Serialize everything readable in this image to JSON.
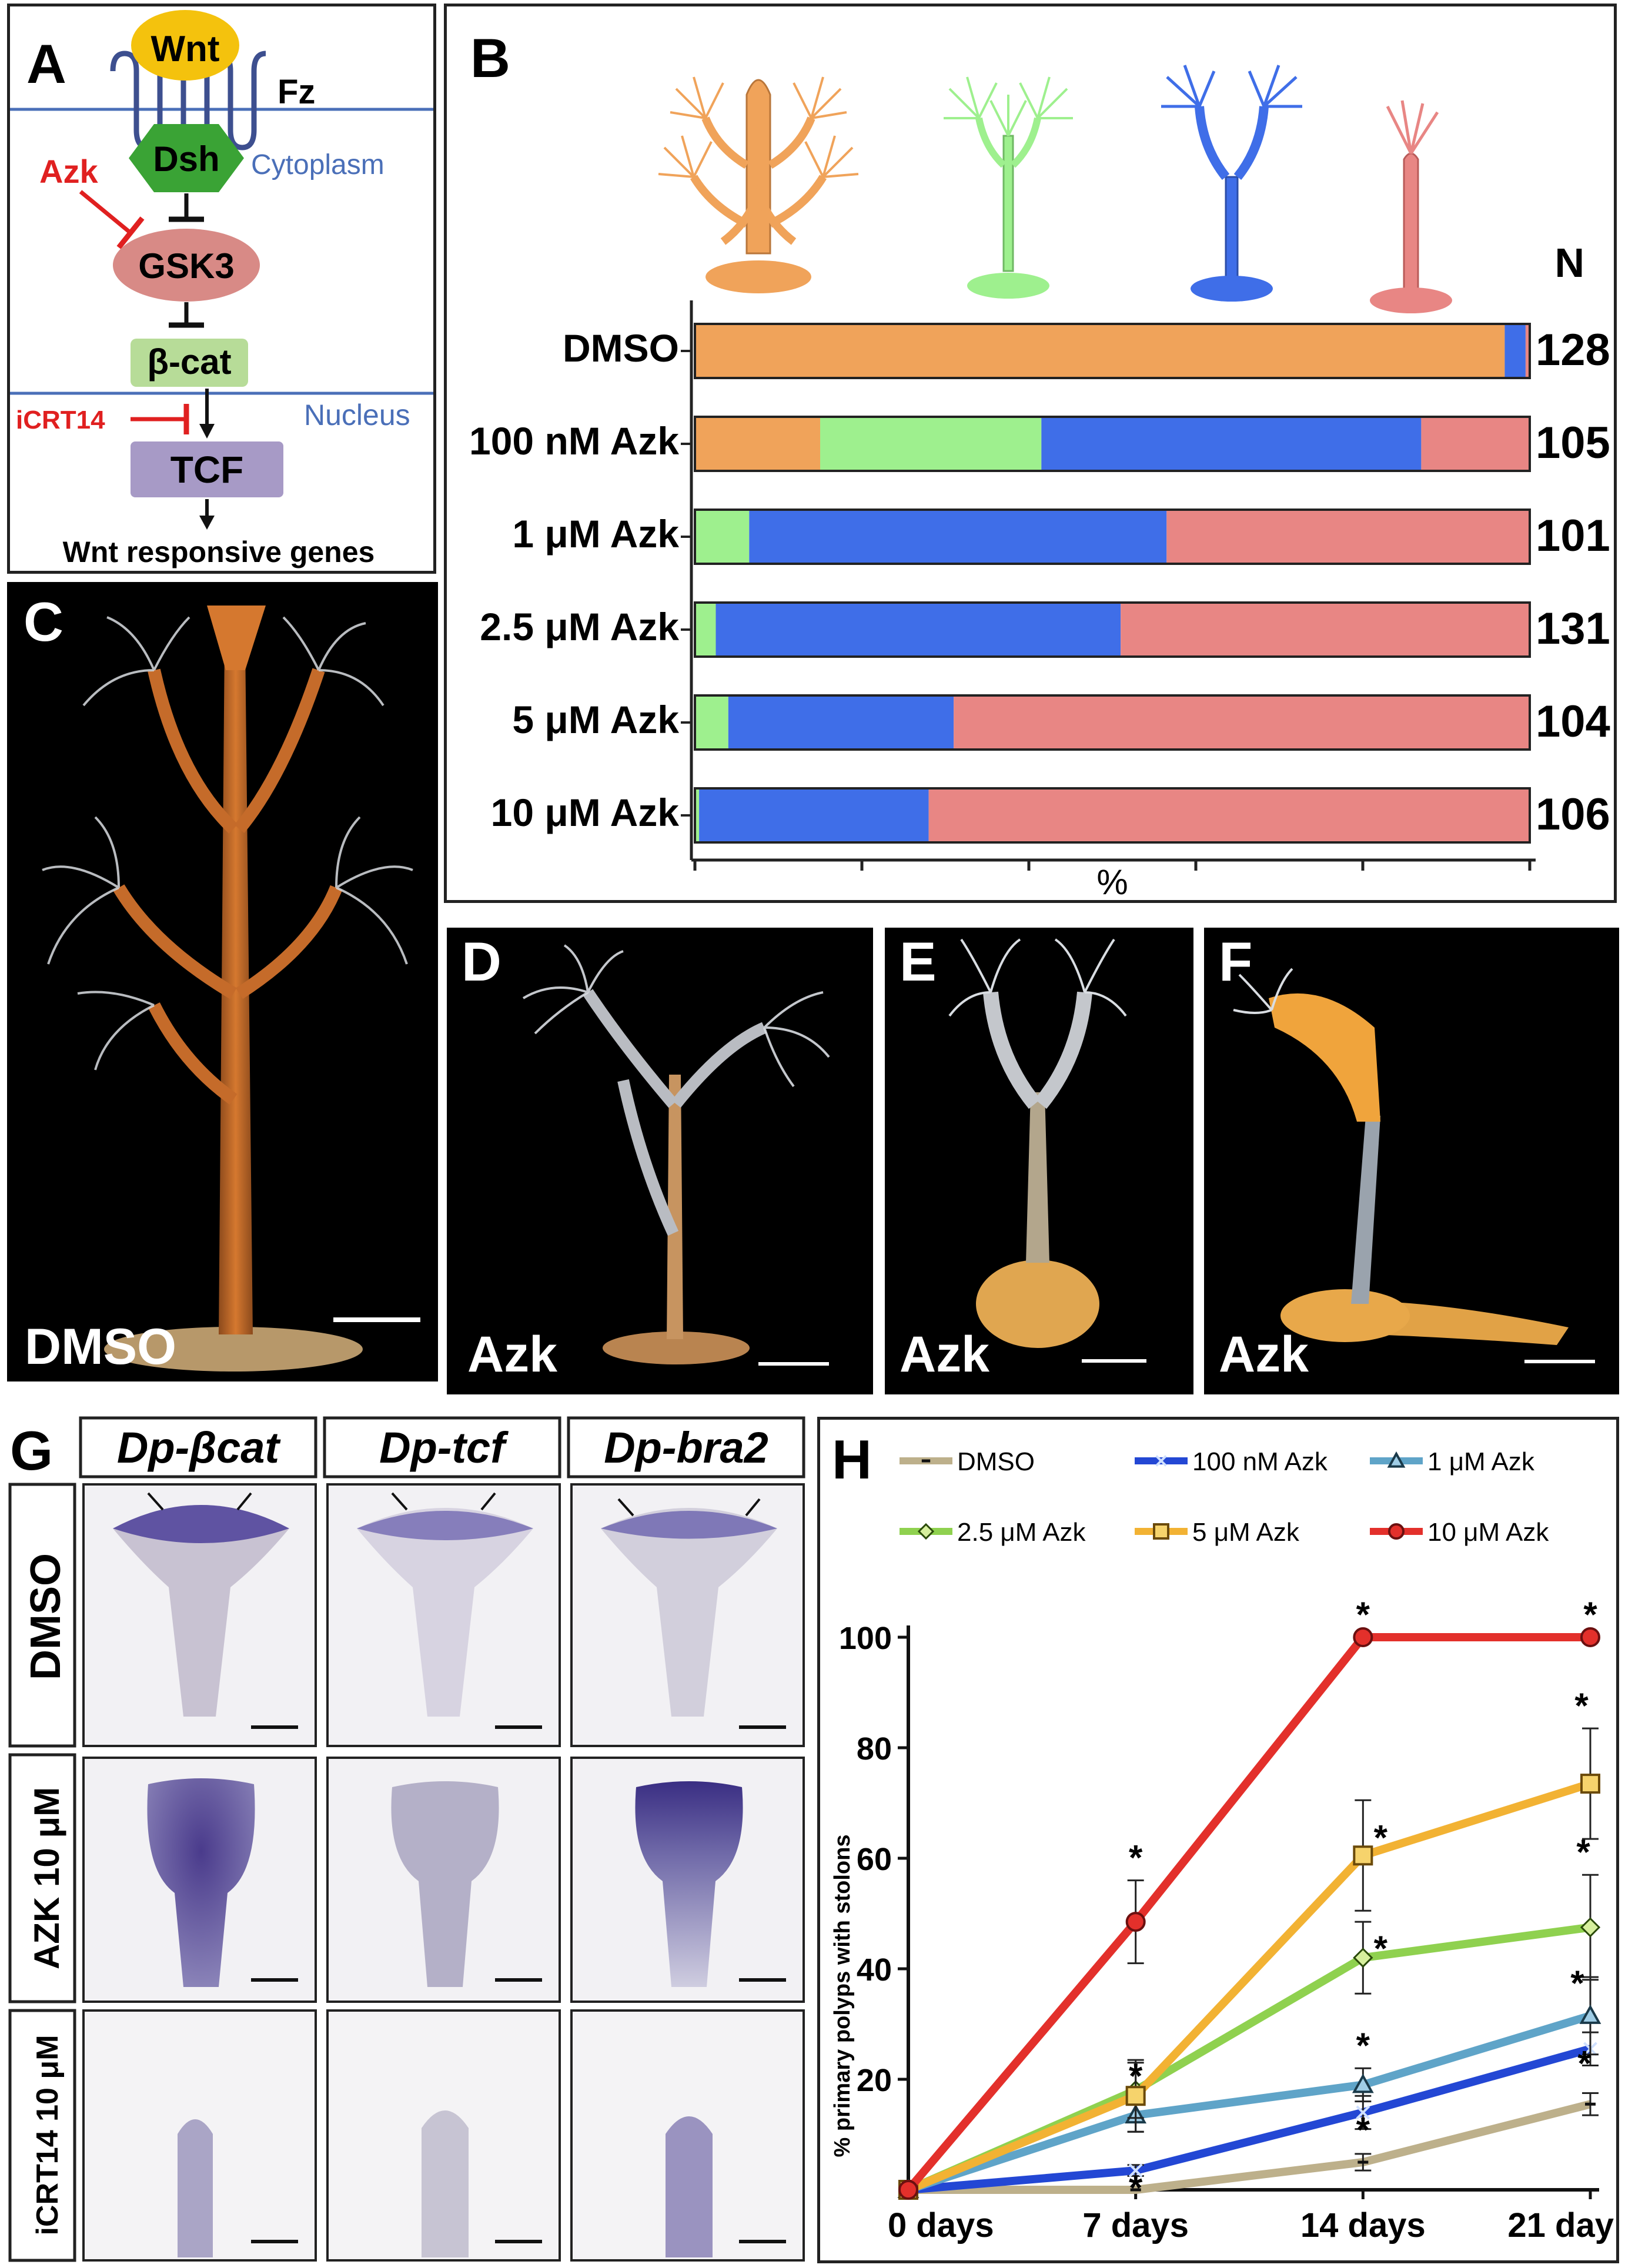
{
  "panelA": {
    "label": "A",
    "wnt": "Wnt",
    "fz": "Fz",
    "dsh": "Dsh",
    "cytoplasm": "Cytoplasm",
    "azk": "Azk",
    "gsk3": "GSK3",
    "bcat": "β-cat",
    "icrt14": "iCRT14",
    "nucleus": "Nucleus",
    "tcf": "TCF",
    "genes": "Wnt responsive genes",
    "colors": {
      "wnt": "#f4c20d",
      "dsh": "#3aa335",
      "gsk3": "#d88a86",
      "bcat": "#b7dc98",
      "tcf": "#a79ac6",
      "membrane": "#4a6fb8",
      "inhibitor": "#e02020"
    }
  },
  "panelB": {
    "label": "B",
    "n_header": "N",
    "x_axis_label": "%",
    "morph_colors": [
      "#f0a35a",
      "#9ef08e",
      "#3f6ee8",
      "#e88684"
    ]
  },
  "chart_data": [
    {
      "type": "bar",
      "stacked": true,
      "orientation": "horizontal",
      "categories": [
        "DMSO",
        "100 nM Azk",
        "1 μM Azk",
        "2.5 μM Azk",
        "5 μM Azk",
        "10 μM Azk"
      ],
      "n_values": [
        "128",
        "105",
        "101",
        "131",
        "104",
        "106"
      ],
      "series": [
        {
          "color": "#f0a35a",
          "values": [
            97,
            15,
            0,
            0,
            0,
            0
          ]
        },
        {
          "color": "#9ef08e",
          "values": [
            0,
            26.5,
            6.5,
            2.5,
            4,
            0.5
          ]
        },
        {
          "color": "#3f6ee8",
          "values": [
            2.5,
            45.5,
            50,
            48.5,
            27,
            27.5
          ]
        },
        {
          "color": "#e88684",
          "values": [
            0.5,
            13,
            43.5,
            49,
            69,
            72
          ]
        }
      ],
      "xlabel": "%",
      "xlim": [
        0,
        100
      ],
      "grid": false
    },
    {
      "type": "line",
      "x": [
        "0 days",
        "7 days",
        "14 days",
        "21 day"
      ],
      "ylabel": "% primary polyps with stolons",
      "ylim": [
        0,
        100
      ],
      "yticks": [
        "20",
        "40",
        "60",
        "80",
        "100"
      ],
      "legend_position": "top",
      "series": [
        {
          "name": "DMSO",
          "color": "#bdb08b",
          "marker": "dash",
          "values": [
            0,
            0,
            5,
            15.5
          ],
          "err": [
            0,
            0,
            1.5,
            2
          ]
        },
        {
          "name": "100 nM Azk",
          "color": "#2347d4",
          "marker": "x",
          "values": [
            0,
            3.5,
            14,
            25.5
          ],
          "err": [
            0,
            1,
            3,
            3
          ]
        },
        {
          "name": "1 μM Azk",
          "color": "#5fa4c8",
          "marker": "triangle",
          "values": [
            0,
            13.5,
            19,
            31.5
          ],
          "err": [
            0,
            3,
            3,
            7
          ]
        },
        {
          "name": "2.5 μM Azk",
          "color": "#8fd14f",
          "marker": "diamond",
          "values": [
            0,
            18,
            42,
            47.5
          ],
          "err": [
            0,
            5,
            6.5,
            9.5
          ]
        },
        {
          "name": "5 μM Azk",
          "color": "#f2b233",
          "marker": "square",
          "values": [
            0,
            17,
            60.5,
            73.5
          ],
          "err": [
            0,
            6.5,
            10,
            10
          ]
        },
        {
          "name": "10 μM Azk",
          "color": "#e3302b",
          "marker": "circle",
          "values": [
            0,
            48.5,
            100,
            100
          ],
          "err": [
            0,
            7.5,
            0,
            0
          ]
        }
      ],
      "significance": [
        {
          "series": "10 μM Azk",
          "x": "7 days",
          "mark": "*"
        },
        {
          "series": "10 μM Azk",
          "x": "14 days",
          "mark": "*"
        },
        {
          "series": "10 μM Azk",
          "x": "21 day",
          "mark": "*"
        },
        {
          "series": "5 μM Azk",
          "x": "14 days",
          "mark": "*"
        },
        {
          "series": "5 μM Azk",
          "x": "21 day",
          "mark": "*"
        },
        {
          "series": "2.5 μM Azk",
          "x": "14 days",
          "mark": "*"
        },
        {
          "series": "2.5 μM Azk",
          "x": "21 day",
          "mark": "*"
        },
        {
          "series": "1 μM Azk",
          "x": "7 days",
          "mark": "*"
        },
        {
          "series": "1 μM Azk",
          "x": "14 days",
          "mark": "*"
        },
        {
          "series": "1 μM Azk",
          "x": "21 day",
          "mark": "*"
        },
        {
          "series": "100 nM Azk",
          "x": "7 days",
          "mark": "*"
        },
        {
          "series": "100 nM Azk",
          "x": "14 days",
          "mark": "*"
        },
        {
          "series": "100 nM Azk",
          "x": "21 day",
          "mark": "*"
        }
      ]
    }
  ],
  "panelC": {
    "label": "C",
    "condition": "DMSO"
  },
  "panelD": {
    "label": "D",
    "condition": "Azk"
  },
  "panelE": {
    "label": "E",
    "condition": "Azk"
  },
  "panelF": {
    "label": "F",
    "condition": "Azk"
  },
  "panelG": {
    "label": "G",
    "columns": [
      "Dp-βcat",
      "Dp-tcf",
      "Dp-bra2"
    ],
    "rows": [
      "DMSO",
      "AZK 10 μM",
      "iCRT14 10 μM"
    ]
  },
  "panelH": {
    "label": "H"
  }
}
